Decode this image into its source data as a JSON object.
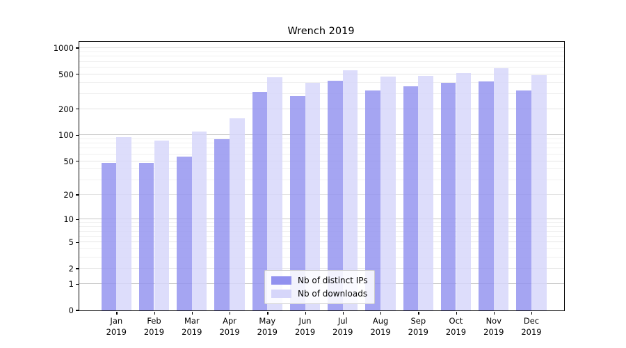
{
  "chart_data": {
    "type": "bar",
    "title": "Wrench 2019",
    "categories": [
      "Jan",
      "Feb",
      "Mar",
      "Apr",
      "May",
      "Jun",
      "Jul",
      "Aug",
      "Sep",
      "Oct",
      "Nov",
      "Dec"
    ],
    "category_year": "2019",
    "series": [
      {
        "name": "Nb of distinct IPs",
        "color": "#9191ef",
        "values": [
          48,
          48,
          56,
          90,
          315,
          284,
          419,
          325,
          363,
          400,
          413,
          329
        ]
      },
      {
        "name": "Nb of downloads",
        "color": "#d6d6fa",
        "values": [
          95,
          87,
          110,
          156,
          464,
          403,
          561,
          473,
          481,
          515,
          589,
          490
        ]
      }
    ],
    "y_scale": "log1p",
    "ylim": [
      0,
      1180
    ],
    "y_ticks": [
      0,
      1,
      2,
      5,
      10,
      20,
      50,
      100,
      200,
      500,
      1000
    ],
    "y_major_dark_ticks": [
      1,
      10,
      100
    ],
    "y_minor_gridlines": [
      3,
      4,
      6,
      7,
      8,
      9,
      30,
      40,
      60,
      70,
      80,
      90,
      300,
      400,
      600,
      700,
      800,
      900
    ],
    "xlabel": "",
    "ylabel": "",
    "grid": true,
    "legend_position": "lower center",
    "colors": {
      "grid_major": "#c6c6c6",
      "grid_mid": "#e4e4e4",
      "grid_minor": "#f0f0f0",
      "axis": "#000000",
      "background": "#ffffff"
    }
  }
}
